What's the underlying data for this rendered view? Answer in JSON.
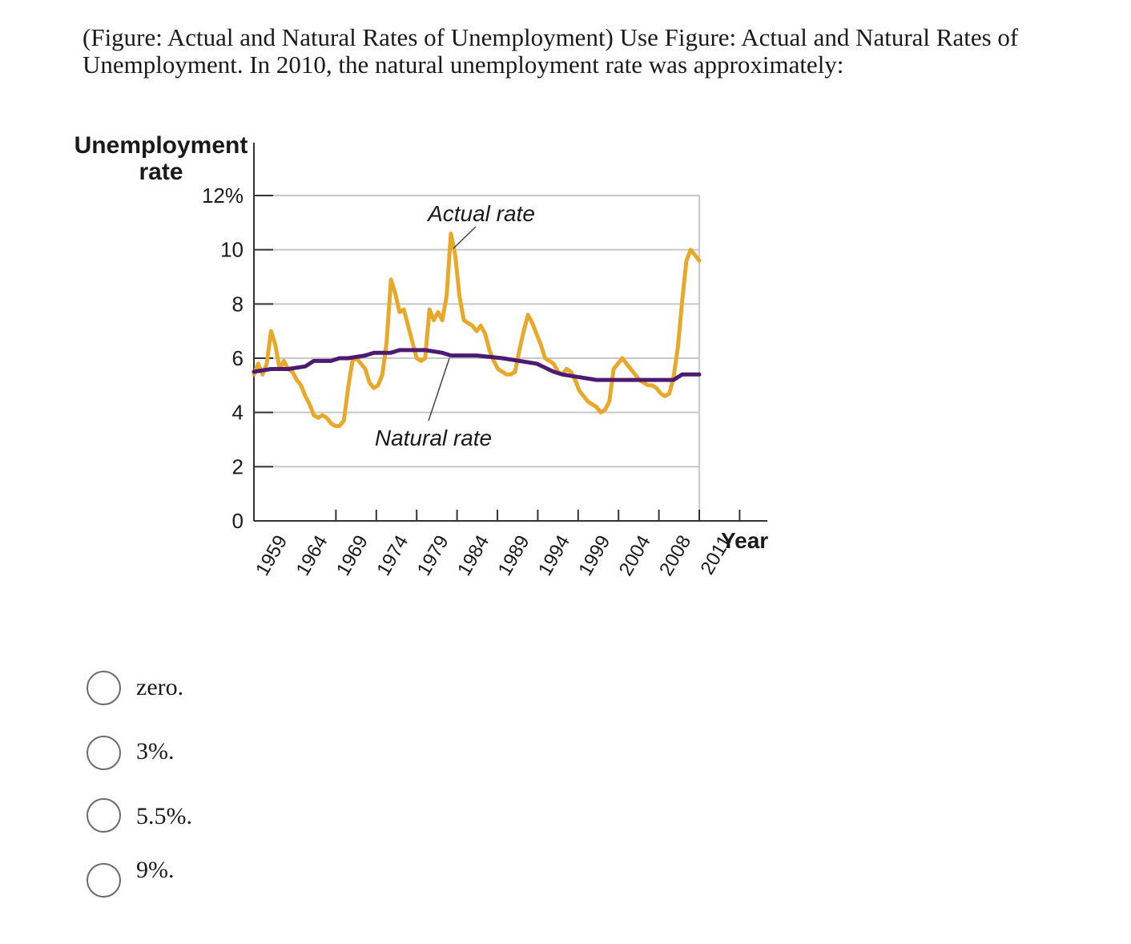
{
  "question": "(Figure: Actual and Natural Rates of Unemployment) Use Figure: Actual and Natural Rates of Unemployment. In 2010, the natural unemployment rate was approximately:",
  "options": [
    {
      "label": "zero."
    },
    {
      "label": "3%."
    },
    {
      "label": "5.5%."
    },
    {
      "label": "9%."
    }
  ],
  "chart_data": {
    "type": "line",
    "ylabel": [
      "Unemployment",
      "rate"
    ],
    "xlabel": "Year",
    "ylim": [
      0,
      12
    ],
    "xlim": [
      1959,
      2011
    ],
    "y_ticks": [
      "0",
      "2",
      "4",
      "6",
      "8",
      "10",
      "12%"
    ],
    "x_ticks": [
      "1959",
      "1964",
      "1969",
      "1974",
      "1979",
      "1984",
      "1989",
      "1994",
      "1999",
      "2004",
      "2008",
      "2011"
    ],
    "grid": true,
    "colors": {
      "actual": "#e8a92a",
      "natural": "#4d1a72",
      "grid": "#c8c8c8",
      "axis": "#333333"
    },
    "annotations": [
      {
        "text": "Actual rate",
        "points_to": "Actual rate series near 1983"
      },
      {
        "text": "Natural rate",
        "points_to": "Natural rate series near 1984"
      }
    ],
    "series": [
      {
        "name": "Actual rate",
        "x": [
          1959,
          1959.5,
          1960,
          1960.5,
          1961,
          1961.5,
          1962,
          1962.5,
          1963,
          1963.5,
          1964,
          1964.5,
          1965,
          1965.5,
          1966,
          1966.5,
          1967,
          1967.5,
          1968,
          1968.5,
          1969,
          1969.5,
          1970,
          1970.5,
          1971,
          1971.5,
          1972,
          1972.5,
          1973,
          1973.5,
          1974,
          1974.5,
          1975,
          1975.5,
          1976,
          1976.5,
          1977,
          1977.5,
          1978,
          1978.5,
          1979,
          1979.5,
          1980,
          1980.5,
          1981,
          1981.5,
          1982,
          1982.5,
          1983,
          1983.5,
          1984,
          1984.5,
          1985,
          1985.5,
          1986,
          1986.5,
          1987,
          1987.5,
          1988,
          1988.5,
          1989,
          1989.5,
          1990,
          1990.5,
          1991,
          1991.5,
          1992,
          1992.5,
          1993,
          1993.5,
          1994,
          1994.5,
          1995,
          1995.5,
          1996,
          1996.5,
          1997,
          1997.5,
          1998,
          1998.5,
          1999,
          1999.5,
          2000,
          2000.5,
          2001,
          2001.5,
          2002,
          2002.5,
          2003,
          2003.5,
          2004,
          2004.5,
          2005,
          2005.5,
          2006,
          2006.5,
          2007,
          2007.5,
          2008,
          2008.5,
          2009,
          2009.5,
          2010,
          2010.5,
          2011
        ],
        "values": [
          5.4,
          5.8,
          5.4,
          5.8,
          7.0,
          6.5,
          5.6,
          5.9,
          5.6,
          5.5,
          5.2,
          5.0,
          4.6,
          4.3,
          3.9,
          3.8,
          3.9,
          3.8,
          3.6,
          3.5,
          3.5,
          3.7,
          4.9,
          5.9,
          6.0,
          5.8,
          5.6,
          5.1,
          4.9,
          5.0,
          5.4,
          6.6,
          8.9,
          8.4,
          7.7,
          7.8,
          7.2,
          6.6,
          6.0,
          5.9,
          6.0,
          7.8,
          7.4,
          7.7,
          7.4,
          8.3,
          10.6,
          9.8,
          8.3,
          7.4,
          7.3,
          7.2,
          7.0,
          7.2,
          6.9,
          6.3,
          5.9,
          5.6,
          5.5,
          5.4,
          5.4,
          5.5,
          6.3,
          7.0,
          7.6,
          7.3,
          6.9,
          6.5,
          6.0,
          5.9,
          5.8,
          5.5,
          5.4,
          5.6,
          5.5,
          5.2,
          4.8,
          4.6,
          4.4,
          4.3,
          4.2,
          4.0,
          4.1,
          4.4,
          5.6,
          5.8,
          6.0,
          5.8,
          5.6,
          5.4,
          5.2,
          5.1,
          5.0,
          5.0,
          4.9,
          4.7,
          4.6,
          4.7,
          5.3,
          6.4,
          8.1,
          9.6,
          10.0,
          9.8,
          9.6
        ]
      },
      {
        "name": "Natural rate",
        "x": [
          1959,
          1961,
          1962,
          1963,
          1965,
          1966,
          1967,
          1968,
          1969,
          1970,
          1972,
          1973,
          1975,
          1976,
          1978,
          1979,
          1981,
          1982,
          1983,
          1985,
          1988,
          1990,
          1992,
          1994,
          1995,
          1997,
          1999,
          2001,
          2003,
          2005,
          2007,
          2008,
          2009,
          2011
        ],
        "values": [
          5.5,
          5.6,
          5.6,
          5.6,
          5.7,
          5.9,
          5.9,
          5.9,
          6.0,
          6.0,
          6.1,
          6.2,
          6.2,
          6.3,
          6.3,
          6.3,
          6.2,
          6.1,
          6.1,
          6.1,
          6.0,
          5.9,
          5.8,
          5.5,
          5.4,
          5.3,
          5.2,
          5.2,
          5.2,
          5.2,
          5.2,
          5.2,
          5.4,
          5.4
        ]
      }
    ]
  }
}
